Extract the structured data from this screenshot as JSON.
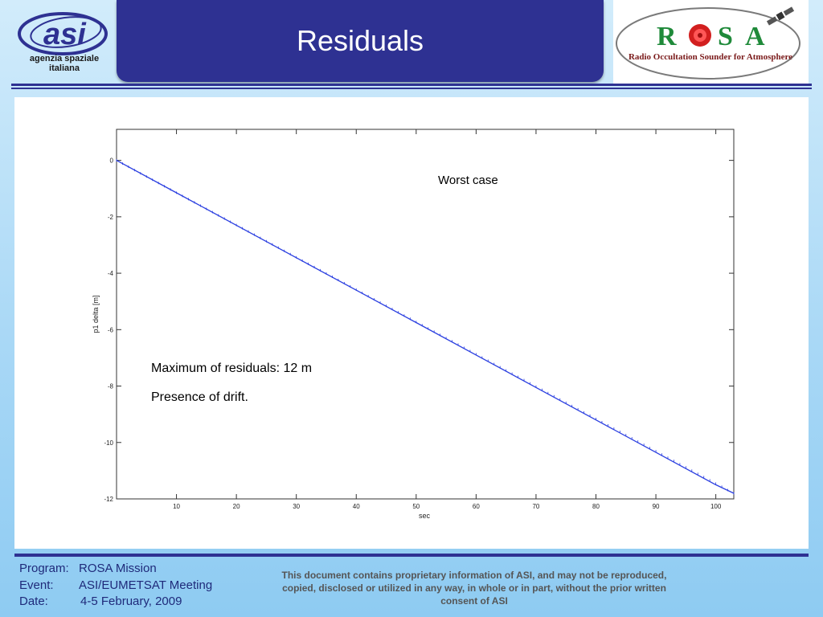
{
  "header": {
    "title": "Residuals",
    "asi_logo_text": [
      "agenzia spaziale",
      "italiana"
    ],
    "rosa_logo": {
      "letters": "R   S A",
      "subtitle": "Radio Occultation Sounder for Atmosphere"
    }
  },
  "chart_data": {
    "type": "line",
    "title": "",
    "xlabel": "sec",
    "ylabel": "p1 delta [m]",
    "xlim": [
      0,
      103
    ],
    "ylim": [
      -12,
      1.1
    ],
    "xticks": [
      10,
      20,
      30,
      40,
      50,
      60,
      70,
      80,
      90,
      100
    ],
    "yticks": [
      0,
      -2,
      -4,
      -6,
      -8,
      -10,
      -12
    ],
    "series": [
      {
        "x": [
          0,
          10,
          20,
          30,
          40,
          50,
          60,
          70,
          80,
          90,
          100,
          103
        ],
        "y": [
          0,
          -1.15,
          -2.3,
          -3.45,
          -4.6,
          -5.75,
          -6.9,
          -8.05,
          -9.2,
          -10.35,
          -11.5,
          -11.8
        ]
      }
    ],
    "grid": false,
    "annotations": [
      "Worst case",
      "Maximum of residuals: 12 m",
      "Presence of drift."
    ],
    "line_color": "#2b3fe0"
  },
  "footer": {
    "program_label": "Program:",
    "program_value": "ROSA Mission",
    "event_label": "Event:",
    "event_value": "ASI/EUMETSAT Meeting",
    "date_label": "Date:",
    "date_value": "4-5 February, 2009",
    "disclaimer": "This document contains proprietary information of ASI, and may not be reproduced, copied, disclosed or utilized in any way, in whole or in part, without the prior written consent of ASI"
  }
}
